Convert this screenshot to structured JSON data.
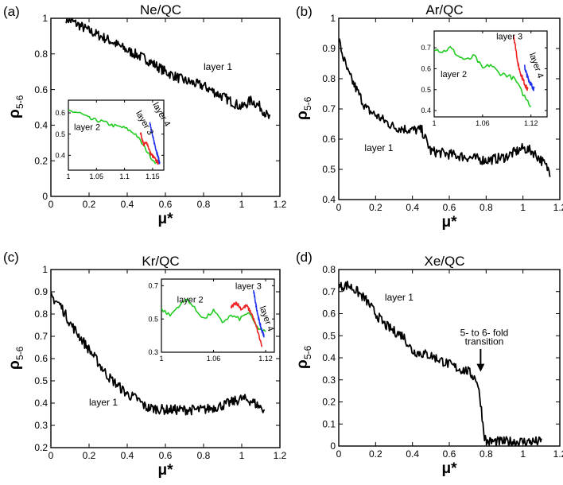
{
  "chart_data": [
    {
      "panel": "(a)",
      "title": "Ne/QC",
      "type": "line",
      "xlabel": "μ*",
      "ylabel": "ρ",
      "ylabel_sub": "5-6",
      "xlim": [
        0,
        1.2
      ],
      "ylim": [
        0,
        1
      ],
      "xticks": [
        0,
        0.2,
        0.4,
        0.6,
        0.8,
        1,
        1.2
      ],
      "yticks": [
        0,
        0.2,
        0.4,
        0.6,
        0.8,
        1
      ],
      "xtick_labels": [
        "0",
        "0.2",
        "0.4",
        "0.6",
        "0.8",
        "1",
        "1.2"
      ],
      "ytick_labels": [
        "0",
        "0.2",
        "0.4",
        "0.6",
        "0.8",
        "1"
      ],
      "series": [
        {
          "name": "layer 1",
          "color": "#000000",
          "x": [
            0.08,
            0.15,
            0.2,
            0.3,
            0.4,
            0.5,
            0.6,
            0.7,
            0.8,
            0.9,
            1.0,
            1.05,
            1.1,
            1.15
          ],
          "y": [
            1.0,
            0.96,
            0.93,
            0.88,
            0.82,
            0.77,
            0.7,
            0.65,
            0.62,
            0.56,
            0.5,
            0.54,
            0.5,
            0.43
          ]
        }
      ],
      "annotations": [
        {
          "text": "layer 1",
          "x": 0.8,
          "y": 0.71
        }
      ],
      "inset": {
        "xlim": [
          1,
          1.17
        ],
        "ylim": [
          0.33,
          0.66
        ],
        "xticks": [
          1,
          1.05,
          1.1,
          1.15
        ],
        "yticks": [
          0.4,
          0.5,
          0.6
        ],
        "xtick_labels": [
          "1",
          "1.05",
          "1.1",
          "1.15"
        ],
        "ytick_labels": [
          "0.4",
          "0.5",
          "0.6"
        ],
        "series": [
          {
            "name": "layer 2",
            "color": "#22cc22",
            "x": [
              1.0,
              1.02,
              1.04,
              1.06,
              1.08,
              1.1,
              1.12,
              1.13,
              1.14,
              1.15,
              1.16
            ],
            "y": [
              0.61,
              0.6,
              0.57,
              0.56,
              0.54,
              0.53,
              0.5,
              0.46,
              0.42,
              0.38,
              0.36
            ]
          },
          {
            "name": "layer 3",
            "color": "#ee2222",
            "x": [
              1.128,
              1.134,
              1.14,
              1.146,
              1.152,
              1.158,
              1.162
            ],
            "y": [
              0.51,
              0.45,
              0.46,
              0.41,
              0.39,
              0.37,
              0.36
            ]
          },
          {
            "name": "layer 4",
            "color": "#2233ee",
            "x": [
              1.145,
              1.15,
              1.155,
              1.16,
              1.163
            ],
            "y": [
              0.56,
              0.49,
              0.44,
              0.39,
              0.36
            ]
          }
        ],
        "annotations": [
          {
            "text": "layer 2",
            "x": 1.01,
            "y": 0.52
          },
          {
            "text": "layer 3",
            "x": 1.12,
            "y": 0.6,
            "rotate": 60
          },
          {
            "text": "layer 4",
            "x": 1.15,
            "y": 0.64,
            "rotate": 60
          }
        ]
      }
    },
    {
      "panel": "(b)",
      "title": "Ar/QC",
      "type": "line",
      "xlabel": "μ*",
      "ylabel": "ρ",
      "ylabel_sub": "5-6",
      "xlim": [
        0,
        1.2
      ],
      "ylim": [
        0.4,
        1
      ],
      "xticks": [
        0,
        0.2,
        0.4,
        0.6,
        0.8,
        1,
        1.2
      ],
      "yticks": [
        0.4,
        0.5,
        0.6,
        0.7,
        0.8,
        0.9,
        1
      ],
      "xtick_labels": [
        "0",
        "0.2",
        "0.4",
        "0.6",
        "0.8",
        "1",
        "1.2"
      ],
      "ytick_labels": [
        "0.4",
        "0.5",
        "0.6",
        "0.7",
        "0.8",
        "0.9",
        "1"
      ],
      "series": [
        {
          "name": "layer 1",
          "color": "#000000",
          "x": [
            0.0,
            0.02,
            0.05,
            0.1,
            0.15,
            0.2,
            0.3,
            0.4,
            0.45,
            0.5,
            0.6,
            0.7,
            0.8,
            0.9,
            1.0,
            1.05,
            1.1,
            1.15
          ],
          "y": [
            0.93,
            0.88,
            0.82,
            0.76,
            0.7,
            0.68,
            0.64,
            0.63,
            0.63,
            0.56,
            0.55,
            0.54,
            0.53,
            0.54,
            0.57,
            0.56,
            0.53,
            0.49
          ]
        }
      ],
      "annotations": [
        {
          "text": "layer 1",
          "x": 0.14,
          "y": 0.56
        }
      ],
      "inset": {
        "xlim": [
          1,
          1.14
        ],
        "ylim": [
          0.37,
          0.78
        ],
        "xticks": [
          1,
          1.06,
          1.12
        ],
        "yticks": [
          0.4,
          0.5,
          0.6,
          0.7
        ],
        "xtick_labels": [
          "1",
          "1.06",
          "1.12"
        ],
        "ytick_labels": [
          "0.4",
          "0.5",
          "0.6",
          "0.7"
        ],
        "series": [
          {
            "name": "layer 2",
            "color": "#22cc22",
            "x": [
              1.0,
              1.01,
              1.02,
              1.03,
              1.04,
              1.05,
              1.06,
              1.07,
              1.08,
              1.09,
              1.1,
              1.11,
              1.12
            ],
            "y": [
              0.7,
              0.68,
              0.7,
              0.66,
              0.64,
              0.66,
              0.6,
              0.62,
              0.58,
              0.57,
              0.55,
              0.48,
              0.42
            ]
          },
          {
            "name": "layer 3",
            "color": "#ee2222",
            "x": [
              1.098,
              1.101,
              1.104,
              1.107,
              1.11,
              1.113,
              1.116
            ],
            "y": [
              0.77,
              0.7,
              0.62,
              0.58,
              0.55,
              0.52,
              0.5
            ]
          },
          {
            "name": "layer 4",
            "color": "#2233ee",
            "x": [
              1.112,
              1.115,
              1.118,
              1.121,
              1.124
            ],
            "y": [
              0.61,
              0.57,
              0.54,
              0.52,
              0.5
            ]
          }
        ],
        "annotations": [
          {
            "text": "layer 2",
            "x": 1.008,
            "y": 0.56
          },
          {
            "text": "layer 3",
            "x": 1.077,
            "y": 0.74
          },
          {
            "text": "layer 4",
            "x": 1.118,
            "y": 0.67,
            "rotate": 70
          }
        ]
      }
    },
    {
      "panel": "(c)",
      "title": "Kr/QC",
      "type": "line",
      "xlabel": "μ*",
      "ylabel": "ρ",
      "ylabel_sub": "5-6",
      "xlim": [
        0,
        1.2
      ],
      "ylim": [
        0.2,
        1
      ],
      "xticks": [
        0,
        0.2,
        0.4,
        0.6,
        0.8,
        1,
        1.2
      ],
      "yticks": [
        0.2,
        0.3,
        0.4,
        0.5,
        0.6,
        0.7,
        0.8,
        0.9,
        1
      ],
      "xtick_labels": [
        "0",
        "0.2",
        "0.4",
        "0.6",
        "0.8",
        "1",
        "1.2"
      ],
      "ytick_labels": [
        "0.2",
        "0.3",
        "0.4",
        "0.5",
        "0.6",
        "0.7",
        "0.8",
        "0.9",
        "1"
      ],
      "series": [
        {
          "name": "layer 1",
          "color": "#000000",
          "x": [
            0.0,
            0.05,
            0.1,
            0.15,
            0.2,
            0.25,
            0.3,
            0.35,
            0.4,
            0.45,
            0.5,
            0.6,
            0.7,
            0.8,
            0.9,
            1.0,
            1.05,
            1.1,
            1.12
          ],
          "y": [
            0.88,
            0.84,
            0.76,
            0.7,
            0.64,
            0.58,
            0.52,
            0.48,
            0.44,
            0.42,
            0.38,
            0.37,
            0.37,
            0.37,
            0.39,
            0.42,
            0.41,
            0.38,
            0.37
          ]
        }
      ],
      "annotations": [
        {
          "text": "layer 1",
          "x": 0.2,
          "y": 0.39
        }
      ],
      "inset": {
        "xlim": [
          1,
          1.13
        ],
        "ylim": [
          0.3,
          0.74
        ],
        "xticks": [
          1,
          1.06,
          1.12
        ],
        "yticks": [
          0.3,
          0.5,
          0.7
        ],
        "xtick_labels": [
          "1",
          "1.06",
          "1.12"
        ],
        "ytick_labels": [
          "0.3",
          "0.5",
          "0.7"
        ],
        "series": [
          {
            "name": "layer 2",
            "color": "#22cc22",
            "x": [
              1.0,
              1.01,
              1.02,
              1.03,
              1.04,
              1.05,
              1.06,
              1.07,
              1.08,
              1.09,
              1.1,
              1.11,
              1.12
            ],
            "y": [
              0.56,
              0.52,
              0.58,
              0.62,
              0.55,
              0.5,
              0.55,
              0.48,
              0.52,
              0.5,
              0.54,
              0.45,
              0.42
            ]
          },
          {
            "name": "layer 3",
            "color": "#ee2222",
            "x": [
              1.08,
              1.086,
              1.092,
              1.098,
              1.104,
              1.11,
              1.116
            ],
            "y": [
              0.57,
              0.6,
              0.56,
              0.58,
              0.53,
              0.44,
              0.33
            ]
          },
          {
            "name": "layer 4",
            "color": "#2233ee",
            "x": [
              1.106,
              1.109,
              1.112,
              1.115,
              1.118
            ],
            "y": [
              0.67,
              0.58,
              0.5,
              0.44,
              0.4
            ]
          }
        ],
        "annotations": [
          {
            "text": "layer 2",
            "x": 1.018,
            "y": 0.6
          },
          {
            "text": "layer 3",
            "x": 1.085,
            "y": 0.68
          },
          {
            "text": "layer 4",
            "x": 1.113,
            "y": 0.57,
            "rotate": 70
          }
        ]
      }
    },
    {
      "panel": "(d)",
      "title": "Xe/QC",
      "type": "line",
      "xlabel": "μ*",
      "ylabel": "ρ",
      "ylabel_sub": "5-6",
      "xlim": [
        0,
        1.2
      ],
      "ylim": [
        0,
        0.8
      ],
      "xticks": [
        0,
        0.2,
        0.4,
        0.6,
        0.8,
        1,
        1.2
      ],
      "yticks": [
        0,
        0.1,
        0.2,
        0.3,
        0.4,
        0.5,
        0.6,
        0.7,
        0.8
      ],
      "xtick_labels": [
        "0",
        "0.2",
        "0.4",
        "0.6",
        "0.8",
        "1",
        "1.2"
      ],
      "ytick_labels": [
        "0",
        "0.1",
        "0.2",
        "0.3",
        "0.4",
        "0.5",
        "0.6",
        "0.7",
        "0.8"
      ],
      "series": [
        {
          "name": "layer 1",
          "color": "#000000",
          "x": [
            0.0,
            0.05,
            0.1,
            0.15,
            0.2,
            0.25,
            0.3,
            0.35,
            0.4,
            0.45,
            0.5,
            0.55,
            0.6,
            0.65,
            0.7,
            0.75,
            0.77,
            0.78,
            0.79,
            0.8,
            0.85,
            0.9,
            1.0,
            1.1
          ],
          "y": [
            0.72,
            0.73,
            0.7,
            0.66,
            0.6,
            0.55,
            0.52,
            0.5,
            0.43,
            0.42,
            0.41,
            0.39,
            0.37,
            0.35,
            0.34,
            0.3,
            0.2,
            0.12,
            0.05,
            0.02,
            0.02,
            0.02,
            0.02,
            0.02
          ]
        }
      ],
      "annotations": [
        {
          "text": "layer 1",
          "x": 0.25,
          "y": 0.66
        },
        {
          "text": "5- to 6- fold",
          "x": 0.79,
          "y": 0.5
        },
        {
          "text": "transition",
          "x": 0.79,
          "y": 0.46
        }
      ],
      "arrow": {
        "x": 0.77,
        "y_from": 0.44,
        "y_to": 0.34
      }
    }
  ]
}
